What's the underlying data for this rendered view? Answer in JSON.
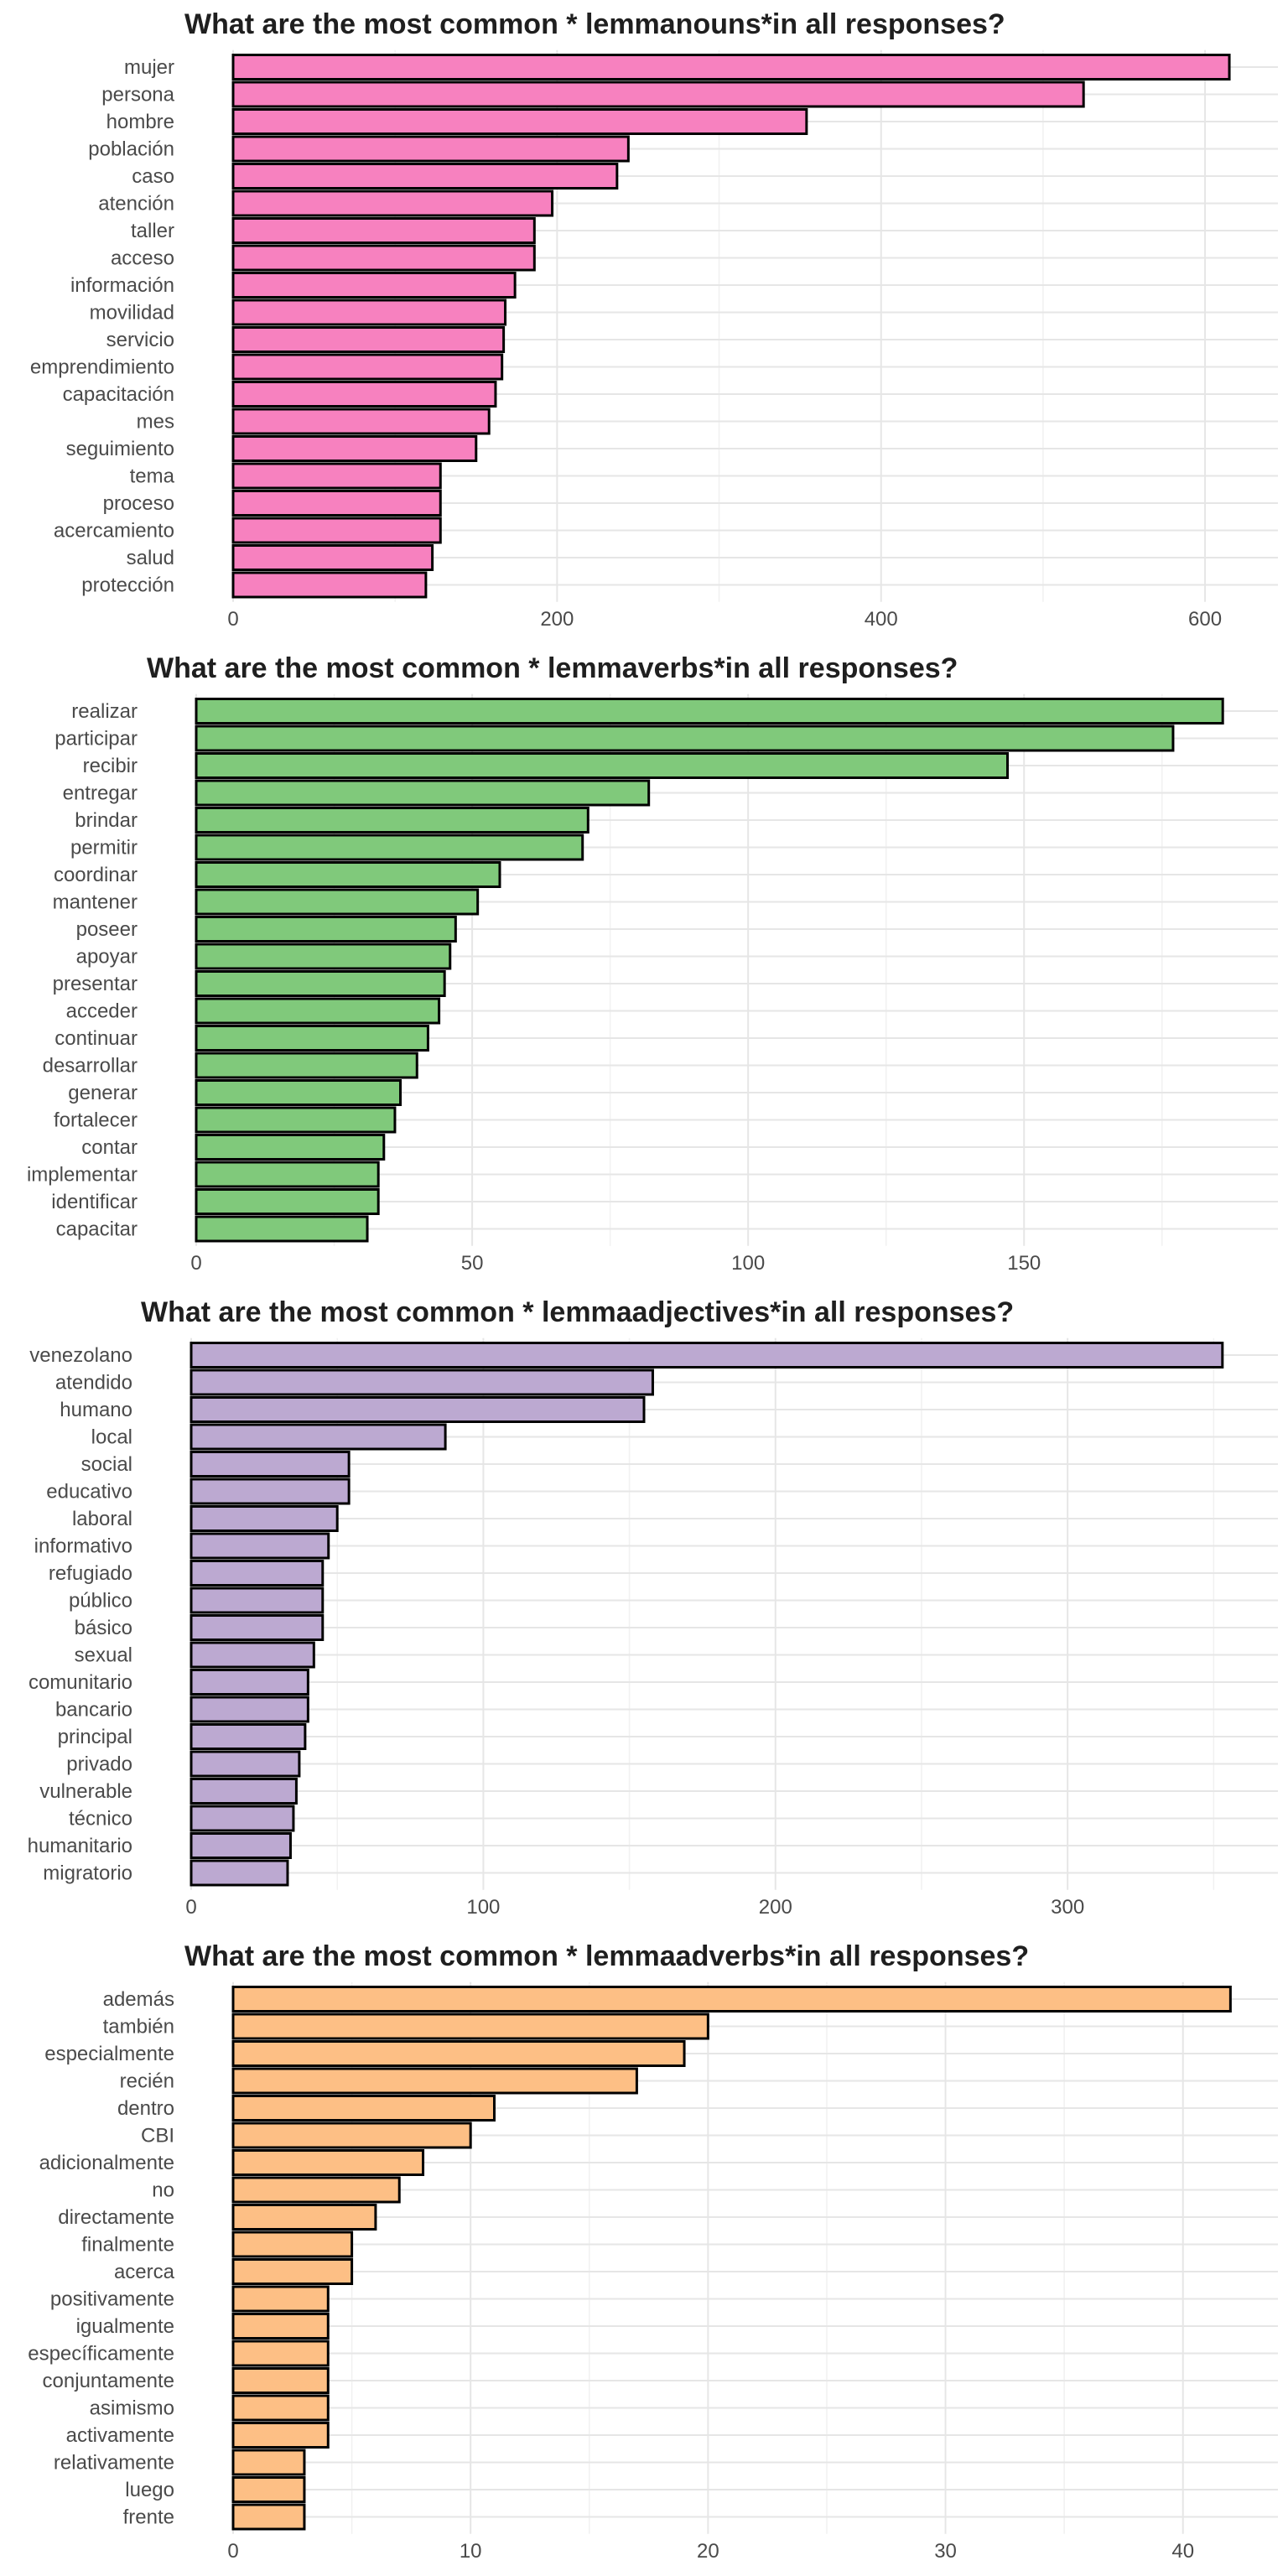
{
  "chart_data": [
    {
      "type": "bar",
      "orientation": "horizontal",
      "title": "What are the most common * lemmanouns*in all responses?",
      "color": "#f781bf",
      "categories": [
        "mujer",
        "persona",
        "hombre",
        "población",
        "caso",
        "atención",
        "taller",
        "acceso",
        "información",
        "movilidad",
        "servicio",
        "emprendimiento",
        "capacitación",
        "mes",
        "seguimiento",
        "tema",
        "proceso",
        "acercamiento",
        "salud",
        "protección"
      ],
      "values": [
        615,
        525,
        354,
        244,
        237,
        197,
        186,
        186,
        174,
        168,
        167,
        166,
        162,
        158,
        150,
        128,
        128,
        128,
        123,
        119
      ],
      "xticks": [
        0,
        200,
        400,
        600
      ],
      "xlim": [
        0,
        645
      ],
      "grid": true
    },
    {
      "type": "bar",
      "orientation": "horizontal",
      "title": "What are the most common * lemmaverbs*in all responses?",
      "color": "#80c97b",
      "categories": [
        "realizar",
        "participar",
        "recibir",
        "entregar",
        "brindar",
        "permitir",
        "coordinar",
        "mantener",
        "poseer",
        "apoyar",
        "presentar",
        "acceder",
        "continuar",
        "desarrollar",
        "generar",
        "fortalecer",
        "contar",
        "implementar",
        "identificar",
        "capacitar"
      ],
      "values": [
        186,
        177,
        147,
        82,
        71,
        70,
        55,
        51,
        47,
        46,
        45,
        44,
        42,
        40,
        37,
        36,
        34,
        33,
        33,
        31
      ],
      "xticks": [
        0,
        50,
        100,
        150
      ],
      "xlim": [
        0,
        196
      ],
      "grid": true
    },
    {
      "type": "bar",
      "orientation": "horizontal",
      "title": "What are the most common * lemmaadjectives*in all responses?",
      "color": "#bca9d1",
      "categories": [
        "venezolano",
        "atendido",
        "humano",
        "local",
        "social",
        "educativo",
        "laboral",
        "informativo",
        "refugiado",
        "público",
        "básico",
        "sexual",
        "comunitario",
        "bancario",
        "principal",
        "privado",
        "vulnerable",
        "técnico",
        "humanitario",
        "migratorio"
      ],
      "values": [
        353,
        158,
        155,
        87,
        54,
        54,
        50,
        47,
        45,
        45,
        45,
        42,
        40,
        40,
        39,
        37,
        36,
        35,
        34,
        33
      ],
      "xticks": [
        0,
        100,
        200,
        300
      ],
      "xlim": [
        0,
        372
      ],
      "grid": true
    },
    {
      "type": "bar",
      "orientation": "horizontal",
      "title": "What are the most common * lemmaadverbs*in all responses?",
      "color": "#fdbf85",
      "categories": [
        "además",
        "también",
        "especialmente",
        "recién",
        "dentro",
        "CBI",
        "adicionalmente",
        "no",
        "directamente",
        "finalmente",
        "acerca",
        "positivamente",
        "igualmente",
        "específicamente",
        "conjuntamente",
        "asimismo",
        "activamente",
        "relativamente",
        "luego",
        "frente"
      ],
      "values": [
        42,
        20,
        19,
        17,
        11,
        10,
        8,
        7,
        6,
        5,
        5,
        4,
        4,
        4,
        4,
        4,
        4,
        3,
        3,
        3
      ],
      "xticks": [
        0,
        10,
        20,
        30,
        40
      ],
      "xlim": [
        0,
        44
      ],
      "grid": true
    }
  ]
}
